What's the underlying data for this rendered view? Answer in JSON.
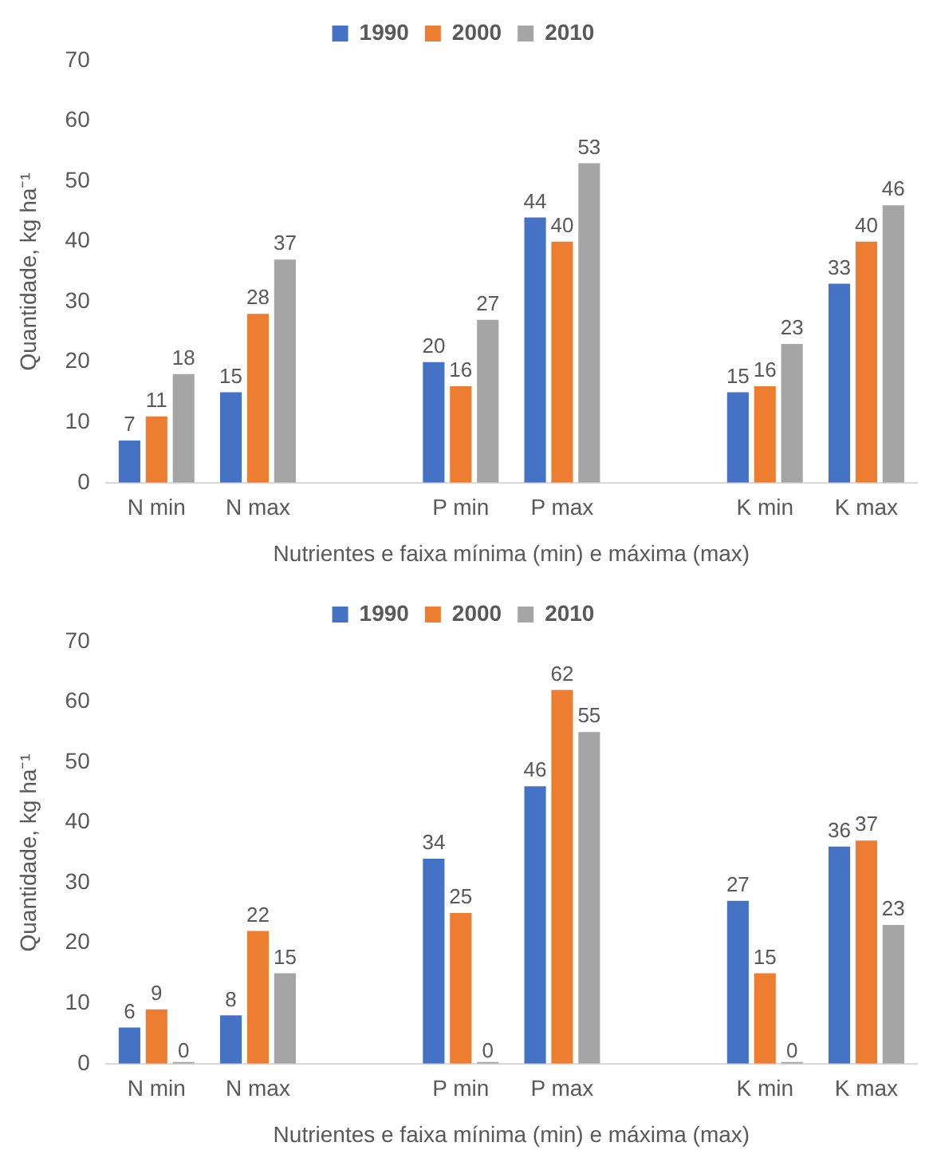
{
  "chart_data": [
    {
      "type": "bar",
      "categories": [
        "N min",
        "N max",
        null,
        "P min",
        "P max",
        null,
        "K min",
        "K max"
      ],
      "xlabel": "Nutrientes e faixa mínima (min) e máxima (max)",
      "ylabel": "Quantidade, kg ha⁻¹",
      "ylim": [
        0,
        70
      ],
      "yticks": [
        0,
        10,
        20,
        30,
        40,
        50,
        60,
        70
      ],
      "grid": false,
      "legend": "top",
      "data_labels": true,
      "series": [
        {
          "name": "1990",
          "color": "#4472c4",
          "values": [
            7,
            15,
            null,
            20,
            44,
            null,
            15,
            33
          ]
        },
        {
          "name": "2000",
          "color": "#ed7d31",
          "values": [
            11,
            28,
            null,
            16,
            40,
            null,
            16,
            40
          ]
        },
        {
          "name": "2010",
          "color": "#a5a5a5",
          "values": [
            18,
            37,
            null,
            27,
            53,
            null,
            23,
            46
          ]
        }
      ]
    },
    {
      "type": "bar",
      "categories": [
        "N min",
        "N max",
        null,
        "P min",
        "P max",
        null,
        "K min",
        "K max"
      ],
      "xlabel": "Nutrientes e faixa mínima (min) e máxima (max)",
      "ylabel": "Quantidade, kg ha⁻¹",
      "ylim": [
        0,
        70
      ],
      "yticks": [
        0,
        10,
        20,
        30,
        40,
        50,
        60,
        70
      ],
      "grid": false,
      "legend": "top",
      "data_labels": true,
      "series": [
        {
          "name": "1990",
          "color": "#4472c4",
          "values": [
            6,
            8,
            null,
            34,
            46,
            null,
            27,
            36
          ]
        },
        {
          "name": "2000",
          "color": "#ed7d31",
          "values": [
            9,
            22,
            null,
            25,
            62,
            null,
            15,
            37
          ]
        },
        {
          "name": "2010",
          "color": "#a5a5a5",
          "values": [
            0,
            15,
            null,
            0,
            55,
            null,
            0,
            23
          ]
        }
      ]
    }
  ]
}
